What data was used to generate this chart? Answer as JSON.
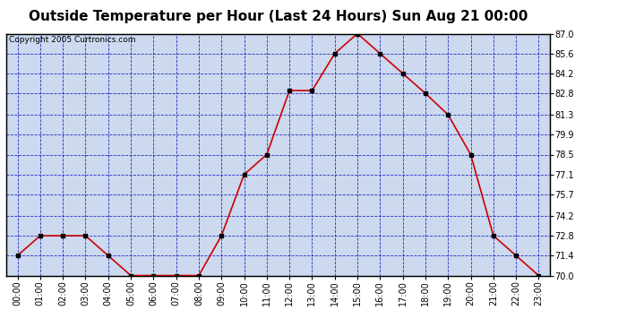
{
  "title": "Outside Temperature per Hour (Last 24 Hours) Sun Aug 21 00:00",
  "copyright": "Copyright 2005 Curtronics.com",
  "hours": [
    "00:00",
    "01:00",
    "02:00",
    "03:00",
    "04:00",
    "05:00",
    "06:00",
    "07:00",
    "08:00",
    "09:00",
    "10:00",
    "11:00",
    "12:00",
    "13:00",
    "14:00",
    "15:00",
    "16:00",
    "17:00",
    "18:00",
    "19:00",
    "20:00",
    "21:00",
    "22:00",
    "23:00"
  ],
  "temperatures": [
    71.4,
    72.8,
    72.8,
    72.8,
    71.4,
    70.0,
    70.0,
    70.0,
    70.0,
    72.8,
    77.1,
    78.5,
    83.0,
    83.0,
    85.6,
    87.0,
    85.6,
    84.2,
    82.8,
    81.3,
    78.5,
    72.8,
    71.4,
    70.0
  ],
  "ylim": [
    70.0,
    87.0
  ],
  "yticks": [
    70.0,
    71.4,
    72.8,
    74.2,
    75.7,
    77.1,
    78.5,
    79.9,
    81.3,
    82.8,
    84.2,
    85.6,
    87.0
  ],
  "line_color": "#cc0000",
  "marker_color": "#000000",
  "bg_color": "#ccd9ee",
  "grid_color": "#0000bb",
  "border_color": "#000000",
  "title_fontsize": 11,
  "copyright_fontsize": 6.5,
  "tick_fontsize": 7,
  "ytick_fontsize": 7
}
